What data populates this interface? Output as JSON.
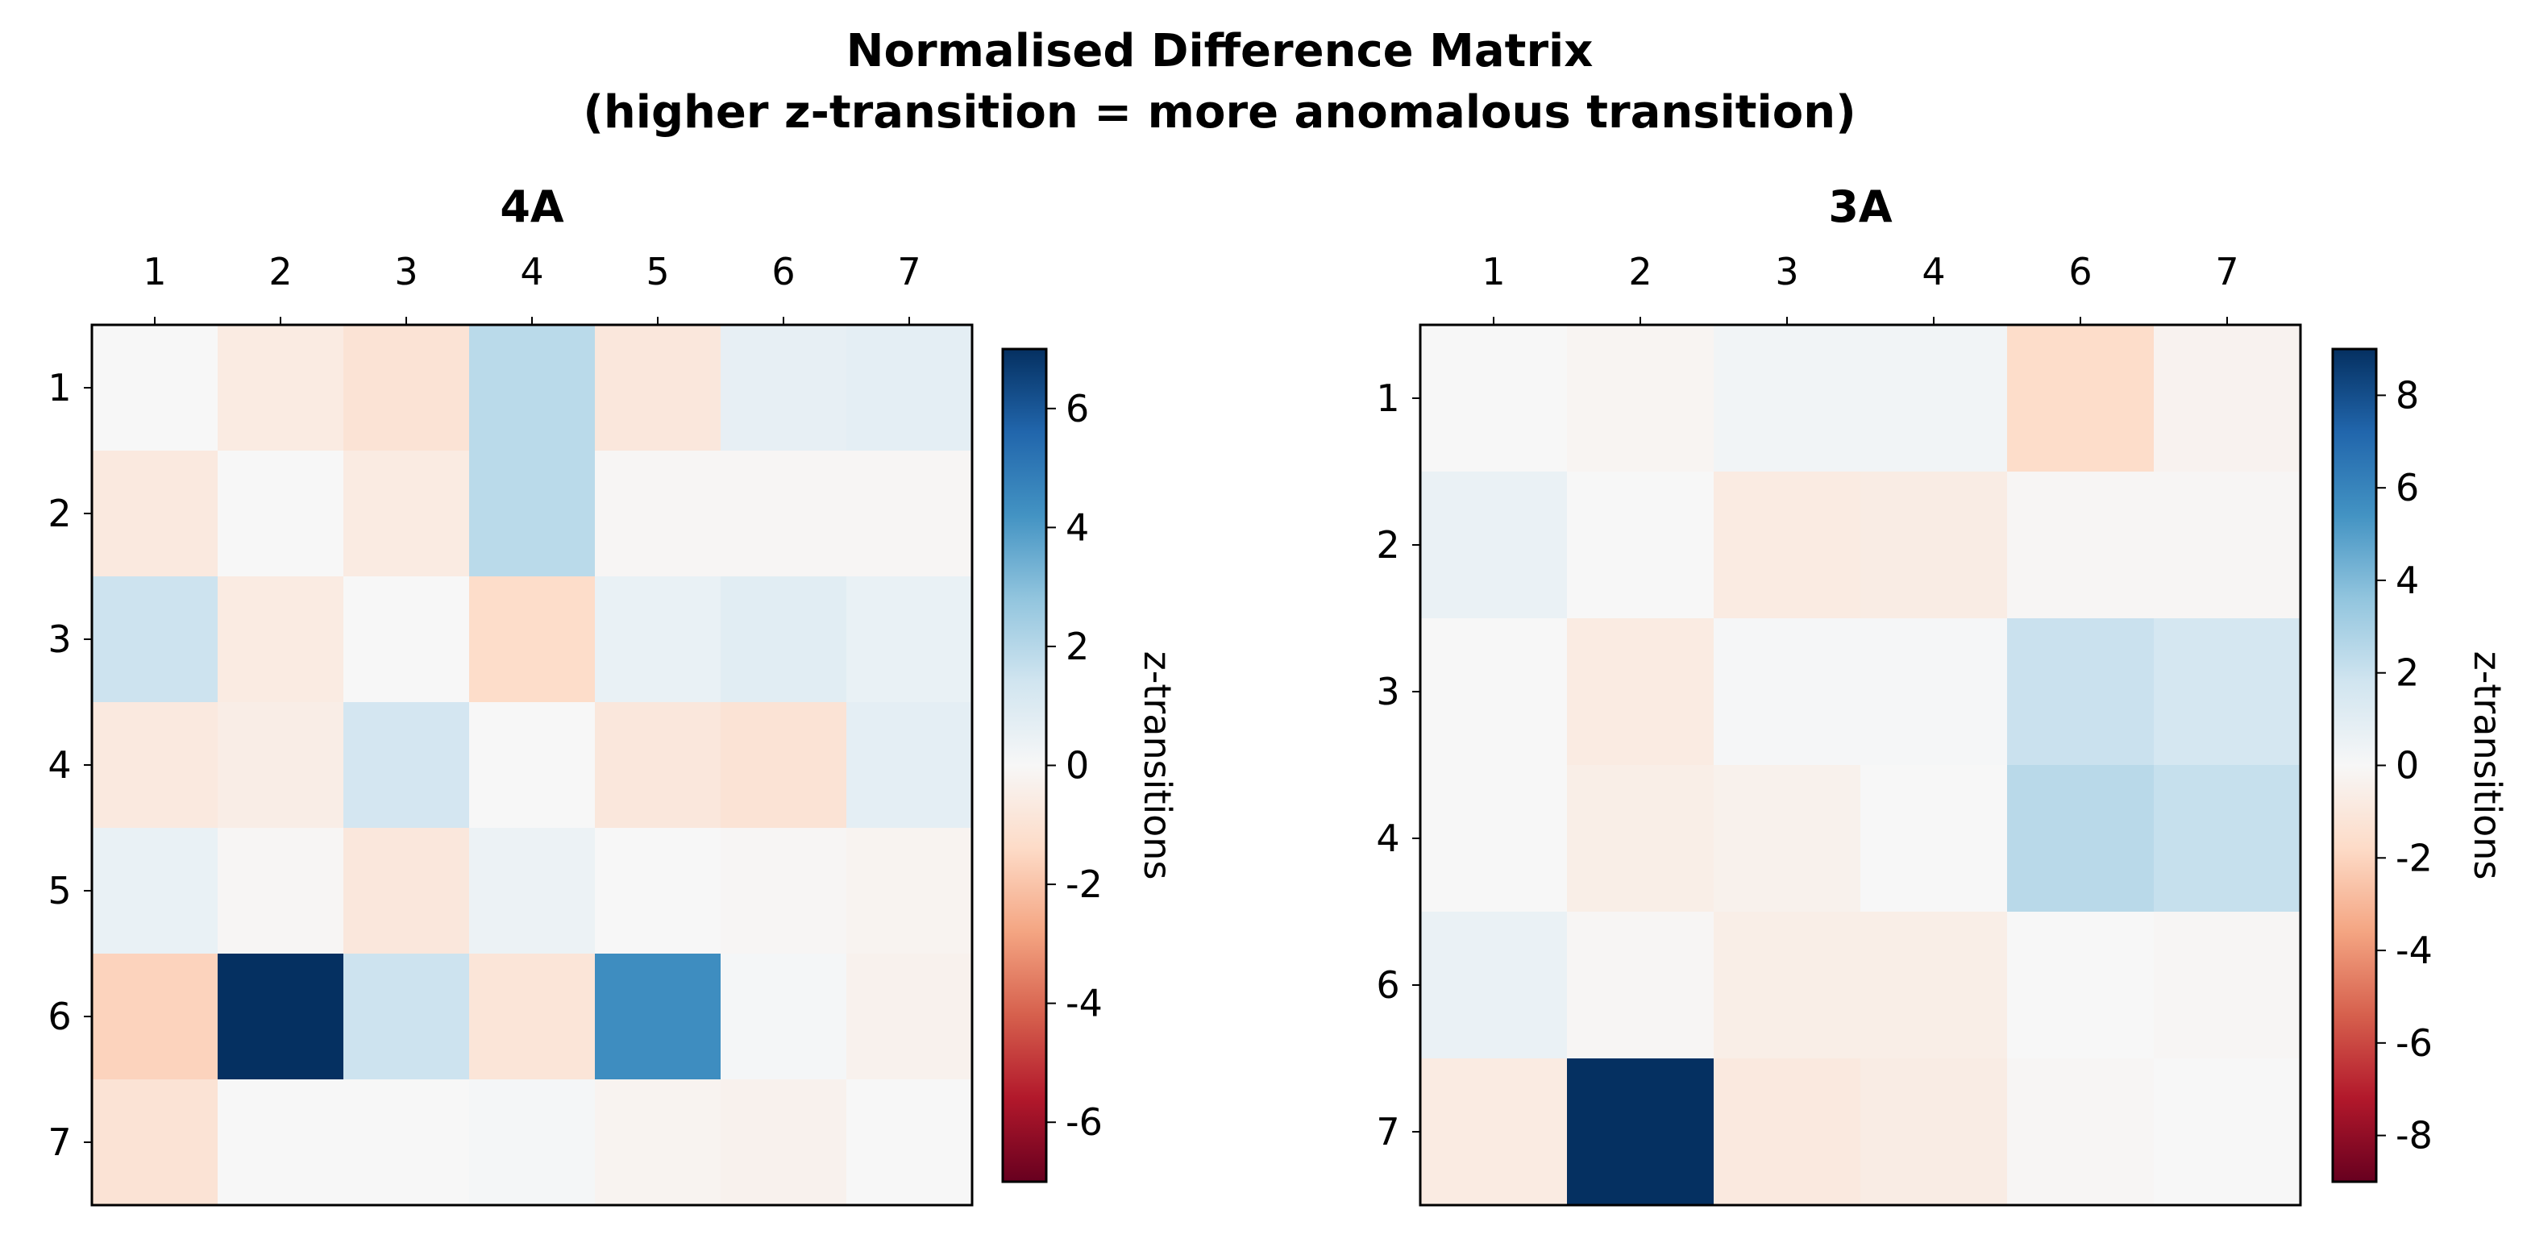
{
  "figure": {
    "title_line1": "Normalised Difference Matrix",
    "title_line2": "(higher z-transition = more anomalous transition)"
  },
  "chart_data": [
    {
      "type": "heatmap",
      "title": "4A",
      "x_categories": [
        "1",
        "2",
        "3",
        "4",
        "5",
        "6",
        "7"
      ],
      "y_categories": [
        "1",
        "2",
        "3",
        "4",
        "5",
        "6",
        "7"
      ],
      "values": [
        [
          0.0,
          -0.6,
          -1.0,
          1.9,
          -0.8,
          0.6,
          0.7
        ],
        [
          -0.7,
          0.0,
          -0.6,
          1.9,
          -0.1,
          -0.1,
          -0.1
        ],
        [
          1.5,
          -0.6,
          0.0,
          -1.3,
          0.5,
          0.8,
          0.5
        ],
        [
          -0.7,
          -0.5,
          1.3,
          0.0,
          -0.8,
          -1.0,
          0.7
        ],
        [
          0.5,
          -0.1,
          -0.8,
          0.4,
          0.0,
          -0.1,
          -0.2
        ],
        [
          -1.6,
          7.0,
          1.5,
          -0.9,
          4.4,
          0.1,
          -0.3
        ],
        [
          -1.0,
          0.0,
          0.0,
          0.1,
          -0.2,
          -0.3,
          0.0
        ]
      ],
      "colorbar": {
        "label": "z-transitions",
        "vmin": -7,
        "vmax": 7,
        "ticks": [
          6,
          4,
          2,
          0,
          -2,
          -4,
          -6
        ],
        "tick_labels": [
          "6",
          "4",
          "2",
          "0",
          "-2",
          "-4",
          "-6"
        ]
      },
      "colormap": "RdBu",
      "grid": false
    },
    {
      "type": "heatmap",
      "title": "3A",
      "x_categories": [
        "1",
        "2",
        "3",
        "4",
        "6",
        "7"
      ],
      "y_categories": [
        "1",
        "2",
        "3",
        "4",
        "6",
        "7"
      ],
      "values": [
        [
          0.0,
          -0.2,
          0.3,
          0.3,
          -1.7,
          -0.3
        ],
        [
          0.6,
          0.0,
          -0.8,
          -0.7,
          -0.1,
          -0.1
        ],
        [
          0.0,
          -0.8,
          0.1,
          0.1,
          2.0,
          1.6
        ],
        [
          0.0,
          -0.6,
          -0.4,
          0.0,
          2.5,
          2.1
        ],
        [
          0.6,
          -0.1,
          -0.6,
          -0.6,
          0.0,
          -0.1
        ],
        [
          -0.8,
          9.0,
          -0.9,
          -0.7,
          -0.1,
          0.0
        ]
      ],
      "colorbar": {
        "label": "z-transitions",
        "vmin": -9,
        "vmax": 9,
        "ticks": [
          8,
          6,
          4,
          2,
          0,
          -2,
          -4,
          -6,
          -8
        ],
        "tick_labels": [
          "8",
          "6",
          "4",
          "2",
          "0",
          "-2",
          "-4",
          "-6",
          "-8"
        ]
      },
      "colormap": "RdBu",
      "grid": false
    }
  ]
}
